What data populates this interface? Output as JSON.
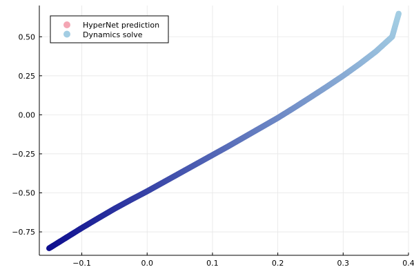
{
  "chart_data": {
    "type": "scatter",
    "title": "",
    "xlabel": "",
    "ylabel": "",
    "xlim": [
      -0.165,
      0.4
    ],
    "ylim": [
      -0.9,
      0.7
    ],
    "xticks": [
      -0.1,
      0.0,
      0.1,
      0.2,
      0.3,
      0.4
    ],
    "xtick_labels": [
      "−0.1",
      "0.0",
      "0.1",
      "0.2",
      "0.3",
      "0.4"
    ],
    "yticks": [
      -0.75,
      -0.5,
      -0.25,
      0.0,
      0.25,
      0.5
    ],
    "ytick_labels": [
      "−0.75",
      "−0.50",
      "−0.25",
      "0.00",
      "0.25",
      "0.50"
    ],
    "grid": true,
    "legend_position": "top-left",
    "series": [
      {
        "name": "HyperNet prediction",
        "color": "#f4a6b4",
        "x": [],
        "y": []
      },
      {
        "name": "Dynamics solve",
        "color": "#a3cde3",
        "color_start": "#0e0e8f",
        "color_end": "#a3cde3",
        "x": [
          -0.15,
          -0.125,
          -0.1,
          -0.075,
          -0.05,
          -0.025,
          0.0,
          0.025,
          0.05,
          0.075,
          0.1,
          0.125,
          0.15,
          0.175,
          0.2,
          0.225,
          0.25,
          0.275,
          0.3,
          0.325,
          0.35,
          0.375,
          0.385
        ],
        "y": [
          -0.855,
          -0.79,
          -0.725,
          -0.663,
          -0.602,
          -0.545,
          -0.49,
          -0.432,
          -0.374,
          -0.316,
          -0.258,
          -0.2,
          -0.14,
          -0.08,
          -0.02,
          0.045,
          0.112,
          0.18,
          0.25,
          0.325,
          0.405,
          0.5,
          0.648
        ]
      }
    ]
  }
}
